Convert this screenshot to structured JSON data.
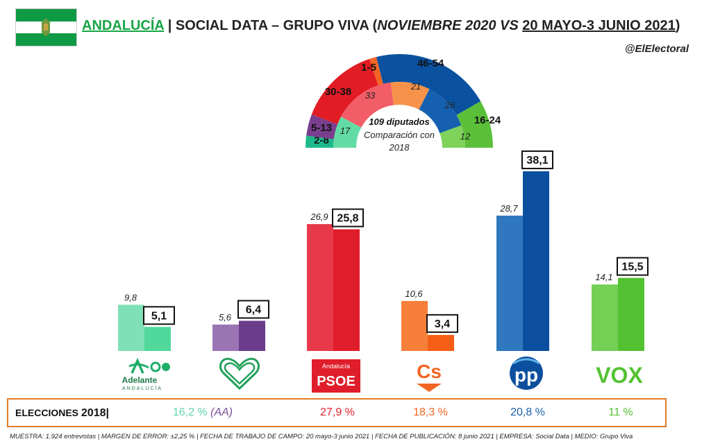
{
  "header": {
    "region": "ANDALUCÍA",
    "separator": "|",
    "pollster": "SOCIAL DATA – GRUPO VIVA",
    "comparison_prefix": "(",
    "comparison_old": "NOVIEMBRE 2020 VS",
    "comparison_new": "20 MAYO-3 JUNIO 2021",
    "comparison_suffix": ")",
    "handle": "@ElElectoral"
  },
  "parliament": {
    "center_title": "109 diputados",
    "center_line2": "Comparación con",
    "center_line3": "2018"
  },
  "chart_data": [
    {
      "type": "pie",
      "subtype": "half-donut",
      "title": "109 diputados",
      "outer_ring": [
        {
          "party": "Adelante Andalucía",
          "seats": "2-8",
          "color": "#1db98a"
        },
        {
          "party": "Por Andalucía",
          "seats": "5-13",
          "color": "#7a3f8f"
        },
        {
          "party": "PSOE",
          "seats": "30-38",
          "color": "#e21c25"
        },
        {
          "party": "Cs",
          "seats": "1-5",
          "color": "#f26522"
        },
        {
          "party": "PP",
          "seats": "46-54",
          "color": "#0a52a0"
        },
        {
          "party": "VOX",
          "seats": "16-24",
          "color": "#5bbf3a"
        }
      ],
      "inner_ring_2018": [
        {
          "party": "Adelante Andalucía",
          "seats": 17,
          "color": "#63dba5"
        },
        {
          "party": "PSOE",
          "seats": 33,
          "color": "#f25d68"
        },
        {
          "party": "Cs",
          "seats": 21,
          "color": "#f7924a"
        },
        {
          "party": "PP",
          "seats": 26,
          "color": "#1660b0"
        },
        {
          "party": "VOX",
          "seats": 12,
          "color": "#7fd35a"
        }
      ]
    },
    {
      "type": "bar",
      "categories": [
        "Adelante Andalucía",
        "Por Andalucía",
        "PSOE",
        "Cs",
        "PP",
        "VOX"
      ],
      "series": [
        {
          "name": "NOVIEMBRE 2020",
          "values": [
            9.8,
            5.6,
            26.9,
            10.6,
            28.7,
            14.1
          ],
          "labels": [
            "9,8",
            "5,6",
            "26,9",
            "10,6",
            "28,7",
            "14,1"
          ]
        },
        {
          "name": "20 MAYO-3 JUNIO 2021",
          "values": [
            5.1,
            6.4,
            25.8,
            3.4,
            38.1,
            15.5
          ],
          "labels": [
            "5,1",
            "6,4",
            "25,8",
            "3,4",
            "38,1",
            "15,5"
          ]
        }
      ],
      "colors_old": [
        "#7fe0b8",
        "#9b74b3",
        "#e8394a",
        "#f67f3a",
        "#2f78bf",
        "#74cf55"
      ],
      "colors_new": [
        "#50d99b",
        "#6a3c8a",
        "#e01e2b",
        "#f45f15",
        "#0c4f9e",
        "#53c232"
      ],
      "ylim": [
        0,
        40
      ]
    }
  ],
  "logos": {
    "adelante_main": "Adelante",
    "adelante_sub": "ANDALUCÍA",
    "psoe_top": "Andalucía",
    "psoe_main": "PSOE",
    "cs": "Cs",
    "pp": "pp",
    "vox": "VOX"
  },
  "elecciones_2018": {
    "label": "ELECCIONES",
    "year": "2018",
    "bar": "|",
    "values": [
      {
        "text": "16,2 %",
        "extra": "(AA)",
        "color": "#5fd4a8",
        "extra_color": "#7a4f98"
      },
      {
        "text": "27,9 %",
        "color": "#e01e2b"
      },
      {
        "text": "18,3 %",
        "color": "#f26522"
      },
      {
        "text": "20,8 %",
        "color": "#1a5fae"
      },
      {
        "text": "11 %",
        "color": "#53c232"
      }
    ]
  },
  "footer": "MUESTRA: 1.924 entrevistas | MARGEN DE ERROR: ±2,25 % | FECHA DE TRABAJO DE CAMPO: 20 mayo-3 junio 2021 | FECHA DE PUBLICACIÓN: 8 junio 2021 | EMPRESA: Social Data | MEDIO: Grupo Viva"
}
